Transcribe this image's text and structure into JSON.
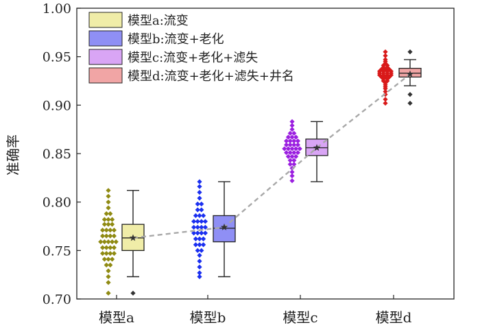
{
  "chart_data": {
    "type": "box",
    "ylabel": "准确率",
    "ylim": [
      0.7,
      1.0
    ],
    "yticks": [
      "0.70",
      "0.75",
      "0.80",
      "0.85",
      "0.90",
      "0.95",
      "1.00"
    ],
    "categories": [
      "模型a",
      "模型b",
      "模型c",
      "模型d"
    ],
    "legend_position": "top-left",
    "legend": [
      {
        "label": "模型a:流变",
        "color": "#f0eda8"
      },
      {
        "label": "模型b:流变+老化",
        "color": "#8f8ff5"
      },
      {
        "label": "模型c:流变+老化+滤失",
        "color": "#d9a5f5"
      },
      {
        "label": "模型d:流变+老化+滤失+井名",
        "color": "#f1a5a5"
      }
    ],
    "series": [
      {
        "category": "模型a",
        "box_color": "#f0eda8",
        "point_color": "#8f8a12",
        "whisker_low": 0.723,
        "q1": 0.75,
        "median": 0.763,
        "q3": 0.777,
        "whisker_high": 0.812,
        "mean": 0.763,
        "outliers": [
          0.706
        ],
        "points": [
          0.812,
          0.806,
          0.8,
          0.794,
          0.788,
          0.788,
          0.782,
          0.782,
          0.782,
          0.777,
          0.777,
          0.777,
          0.771,
          0.771,
          0.771,
          0.771,
          0.765,
          0.765,
          0.765,
          0.765,
          0.759,
          0.759,
          0.759,
          0.759,
          0.759,
          0.753,
          0.753,
          0.753,
          0.753,
          0.747,
          0.747,
          0.747,
          0.747,
          0.741,
          0.741,
          0.741,
          0.735,
          0.735,
          0.729,
          0.723,
          0.717,
          0.706
        ]
      },
      {
        "category": "模型b",
        "box_color": "#8f8ff5",
        "point_color": "#1a2ff0",
        "whisker_low": 0.723,
        "q1": 0.759,
        "median": 0.773,
        "q3": 0.786,
        "whisker_high": 0.821,
        "mean": 0.774,
        "outliers": [],
        "points": [
          0.821,
          0.816,
          0.81,
          0.804,
          0.798,
          0.798,
          0.792,
          0.792,
          0.786,
          0.786,
          0.786,
          0.78,
          0.78,
          0.78,
          0.78,
          0.774,
          0.774,
          0.774,
          0.774,
          0.768,
          0.768,
          0.768,
          0.768,
          0.762,
          0.762,
          0.762,
          0.756,
          0.756,
          0.756,
          0.75,
          0.75,
          0.745,
          0.739,
          0.733,
          0.727,
          0.723
        ]
      },
      {
        "category": "模型c",
        "box_color": "#d9a5f5",
        "point_color": "#9b1fe0",
        "whisker_low": 0.821,
        "q1": 0.848,
        "median": 0.856,
        "q3": 0.865,
        "whisker_high": 0.883,
        "mean": 0.856,
        "outliers": [],
        "points": [
          0.883,
          0.879,
          0.875,
          0.871,
          0.871,
          0.867,
          0.867,
          0.867,
          0.863,
          0.863,
          0.863,
          0.863,
          0.859,
          0.859,
          0.859,
          0.859,
          0.855,
          0.855,
          0.855,
          0.855,
          0.855,
          0.851,
          0.851,
          0.851,
          0.851,
          0.847,
          0.847,
          0.847,
          0.843,
          0.843,
          0.839,
          0.839,
          0.835,
          0.831,
          0.827,
          0.822
        ]
      },
      {
        "category": "模型d",
        "box_color": "#f1a5a5",
        "point_color": "#d91a1a",
        "whisker_low": 0.92,
        "q1": 0.929,
        "median": 0.933,
        "q3": 0.938,
        "whisker_high": 0.947,
        "mean": 0.932,
        "outliers": [
          0.955,
          0.911,
          0.902
        ],
        "points": [
          0.955,
          0.951,
          0.947,
          0.945,
          0.943,
          0.941,
          0.941,
          0.939,
          0.939,
          0.937,
          0.937,
          0.937,
          0.935,
          0.935,
          0.935,
          0.935,
          0.933,
          0.933,
          0.933,
          0.933,
          0.931,
          0.931,
          0.931,
          0.931,
          0.929,
          0.929,
          0.929,
          0.927,
          0.927,
          0.925,
          0.925,
          0.923,
          0.921,
          0.919,
          0.917,
          0.914,
          0.911,
          0.906,
          0.902
        ]
      }
    ],
    "mean_line": [
      0.763,
      0.774,
      0.856,
      0.932
    ]
  }
}
